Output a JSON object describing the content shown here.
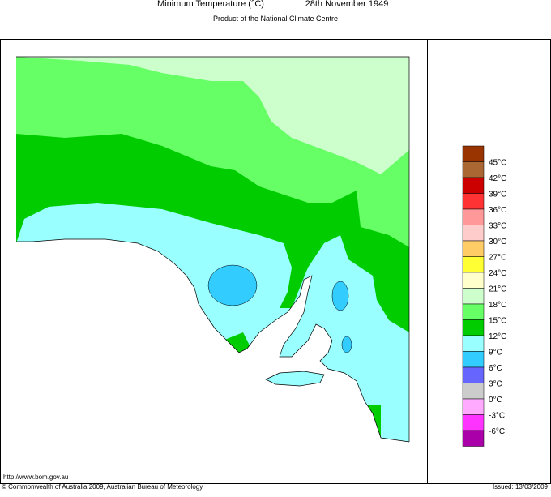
{
  "header": {
    "title": "Minimum Temperature (°C)",
    "date": "28th November 1949",
    "subtitle": "Product of the National Climate Centre"
  },
  "legend": {
    "colors": [
      "#993300",
      "#aa6633",
      "#cc0000",
      "#ff3333",
      "#ff9999",
      "#ffcccc",
      "#ffcc66",
      "#ffff33",
      "#ffffcc",
      "#ccffcc",
      "#66ff66",
      "#00cc00",
      "#99ffff",
      "#33ccff",
      "#6666ff",
      "#cccccc",
      "#ffaaff",
      "#ff33ff",
      "#aa00aa"
    ],
    "labels": [
      "45°C",
      "42°C",
      "39°C",
      "36°C",
      "33°C",
      "30°C",
      "27°C",
      "24°C",
      "21°C",
      "18°C",
      "15°C",
      "12°C",
      "9°C",
      "6°C",
      "3°C",
      "0°C",
      "-3°C",
      "-6°C"
    ]
  },
  "footer": {
    "url": "http://www.bom.gov.au",
    "copyright": "© Commonwealth of Australia 2009, Australian Bureau of Meteorology",
    "issued": "Issued: 13/03/2009"
  }
}
